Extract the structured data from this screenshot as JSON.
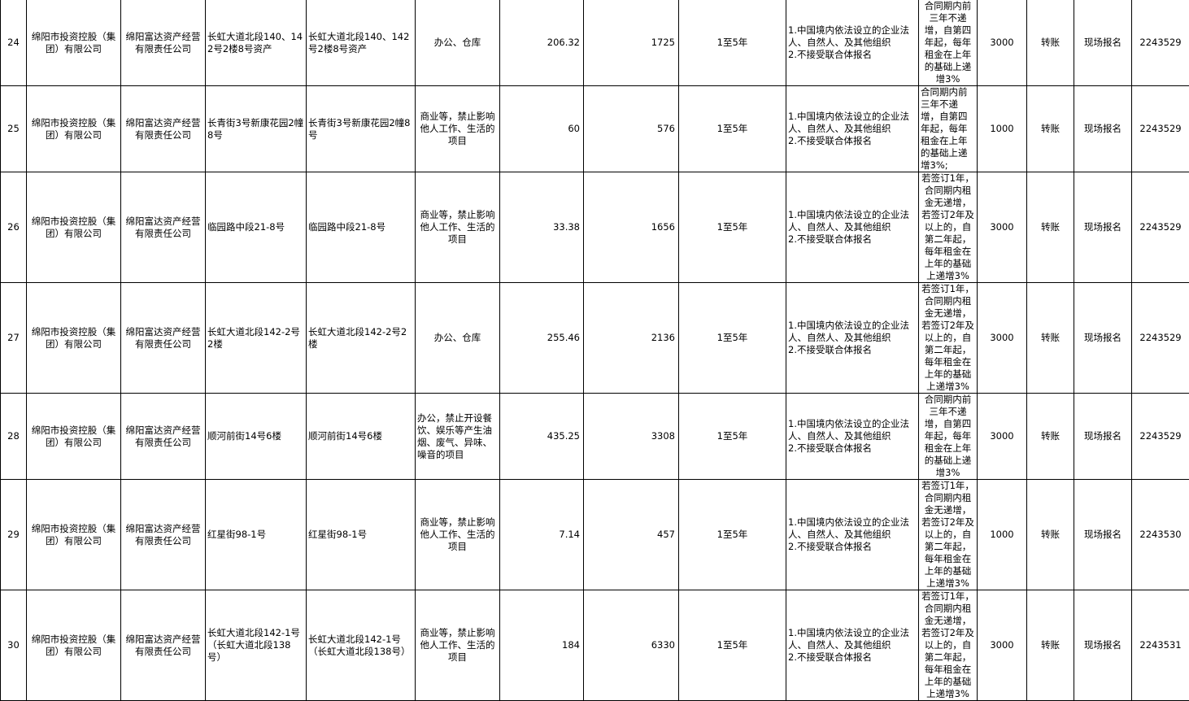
{
  "rows": [
    {
      "no": "24",
      "owner": "绵阳市投资控股（集团）有限公司",
      "operator": "绵阳富达资产经营有限责任公司",
      "location": "长虹大道北段140、142号2楼8号资产",
      "asset": "长虹大道北段140、142号2楼8号资产",
      "use": "办公、仓库",
      "area": "206.32",
      "rent": "1725",
      "term": "1至5年",
      "conditions": [
        "1.中国境内依法设立的企业法人、自然人、及其他组织",
        "2.不接受联合体报名"
      ],
      "increase": "合同期内前三年不递增，自第四年起，每年租金在上年的基础上递增3%",
      "deposit": "3000",
      "payment": "转账",
      "signup": "现场报名",
      "phone": "2243529",
      "extra": ""
    },
    {
      "no": "25",
      "owner": "绵阳市投资控股（集团）有限公司",
      "operator": "绵阳富达资产经营有限责任公司",
      "location": "长青街3号新康花园2幢8号",
      "asset": "长青街3号新康花园2幢8号",
      "use": "商业等，禁止影响他人工作、生活的项目",
      "area": "60",
      "rent": "576",
      "term": "1至5年",
      "conditions": [
        "1.中国境内依法设立的企业法人、自然人、及其他组织",
        "2.不接受联合体报名"
      ],
      "increase": "合同期内前三年不递增，自第四年起，每年租金在上年的基础上递增3%;",
      "deposit": "1000",
      "payment": "转账",
      "signup": "现场报名",
      "phone": "2243529",
      "extra": ""
    },
    {
      "no": "26",
      "owner": "绵阳市投资控股（集团）有限公司",
      "operator": "绵阳富达资产经营有限责任公司",
      "location": "临园路中段21-8号",
      "asset": "临园路中段21-8号",
      "use": "商业等，禁止影响他人工作、生活的项目",
      "area": "33.38",
      "rent": "1656",
      "term": "1至5年",
      "conditions": [
        "1.中国境内依法设立的企业法人、自然人、及其他组织",
        "2.不接受联合体报名"
      ],
      "increase": "若签订1年，合同期内租金无递增，若签订2年及以上的，自第二年起，每年租金在上年的基础上递增3%",
      "deposit": "3000",
      "payment": "转账",
      "signup": "现场报名",
      "phone": "2243529",
      "extra": ""
    },
    {
      "no": "27",
      "owner": "绵阳市投资控股（集团）有限公司",
      "operator": "绵阳富达资产经营有限责任公司",
      "location": "长虹大道北段142-2号2楼",
      "asset": "长虹大道北段142-2号2楼",
      "use": "办公、仓库",
      "area": "255.46",
      "rent": "2136",
      "term": "1至5年",
      "conditions": [
        "1.中国境内依法设立的企业法人、自然人、及其他组织",
        "2.不接受联合体报名"
      ],
      "increase": "若签订1年，合同期内租金无递增，若签订2年及以上的，自第二年起，每年租金在上年的基础上递增3%",
      "deposit": "3000",
      "payment": "转账",
      "signup": "现场报名",
      "phone": "2243529",
      "extra": ""
    },
    {
      "no": "28",
      "owner": "绵阳市投资控股（集团）有限公司",
      "operator": "绵阳富达资产经营有限责任公司",
      "location": "顺河前街14号6楼",
      "asset": "顺河前街14号6楼",
      "use": "办公，禁止开设餐饮、娱乐等产生油烟、废气、异味、噪音的项目",
      "area": "435.25",
      "rent": "3308",
      "term": "1至5年",
      "conditions": [
        "1.中国境内依法设立的企业法人、自然人、及其他组织",
        "2.不接受联合体报名"
      ],
      "increase": "合同期内前三年不递增，自第四年起，每年租金在上年的基础上递增3%",
      "deposit": "3000",
      "payment": "转账",
      "signup": "现场报名",
      "phone": "2243529",
      "extra": ""
    },
    {
      "no": "29",
      "owner": "绵阳市投资控股（集团）有限公司",
      "operator": "绵阳富达资产经营有限责任公司",
      "location": "红星街98-1号",
      "asset": "红星街98-1号",
      "use": "商业等，禁止影响他人工作、生活的项目",
      "area": "7.14",
      "rent": "457",
      "term": "1至5年",
      "conditions": [
        "1.中国境内依法设立的企业法人、自然人、及其他组织",
        "2.不接受联合体报名"
      ],
      "increase": "若签订1年，合同期内租金无递增，若签订2年及以上的，自第二年起，每年租金在上年的基础上递增3%",
      "deposit": "1000",
      "payment": "转账",
      "signup": "现场报名",
      "phone": "2243530",
      "extra": ""
    },
    {
      "no": "30",
      "owner": "绵阳市投资控股（集团）有限公司",
      "operator": "绵阳富达资产经营有限责任公司",
      "location": "长虹大道北段142-1号（长虹大道北段138号）",
      "asset": "长虹大道北段142-1号（长虹大道北段138号）",
      "use": "商业等，禁止影响他人工作、生活的项目",
      "area": "184",
      "rent": "6330",
      "term": "1至5年",
      "conditions": [
        "1.中国境内依法设立的企业法人、自然人、及其他组织",
        "2.不接受联合体报名"
      ],
      "increase": "若签订1年，合同期内租金无递增，若签订2年及以上的，自第二年起，每年租金在上年的基础上递增3%",
      "deposit": "3000",
      "payment": "转账",
      "signup": "现场报名",
      "phone": "2243531",
      "extra": ""
    }
  ]
}
